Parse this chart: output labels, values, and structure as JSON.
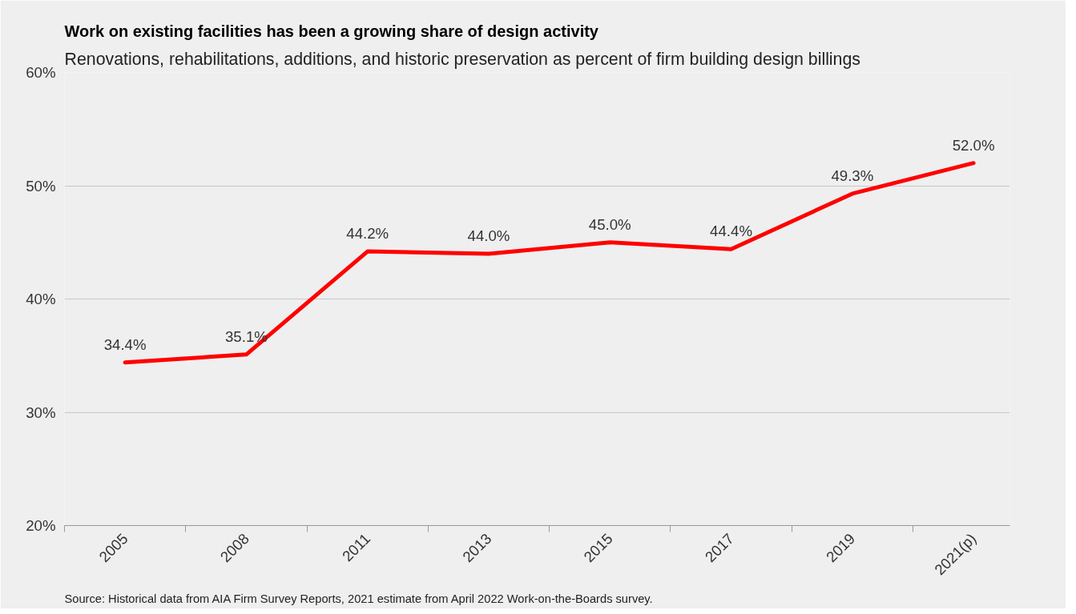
{
  "chart_data": {
    "type": "line",
    "title": "Work on existing facilities has been a growing share of design activity",
    "subtitle": "Renovations, rehabilitations, additions, and historic preservation as percent of firm building design billings",
    "categories": [
      "2005",
      "2008",
      "2011",
      "2013",
      "2015",
      "2017",
      "2019",
      "2021(p)"
    ],
    "series": [
      {
        "color": "#ff0000",
        "values": [
          34.4,
          35.1,
          44.2,
          44.0,
          45.0,
          44.4,
          49.3,
          52.0
        ],
        "value_labels": [
          "34.4%",
          "35.1%",
          "44.2%",
          "44.0%",
          "45.0%",
          "44.4%",
          "49.3%",
          "52.0%"
        ]
      }
    ],
    "ylim": [
      20,
      60
    ],
    "yticks": [
      {
        "value": 20,
        "label": "20%"
      },
      {
        "value": 30,
        "label": "30%"
      },
      {
        "value": 40,
        "label": "40%"
      },
      {
        "value": 50,
        "label": "50%"
      },
      {
        "value": 60,
        "label": "60%"
      }
    ],
    "grid": "y",
    "marker": "none",
    "line_style": "solid",
    "annotations": [
      "Source: Historical data from AIA Firm Survey Reports, 2021 estimate from April 2022 Work-on-the-Boards survey."
    ]
  }
}
